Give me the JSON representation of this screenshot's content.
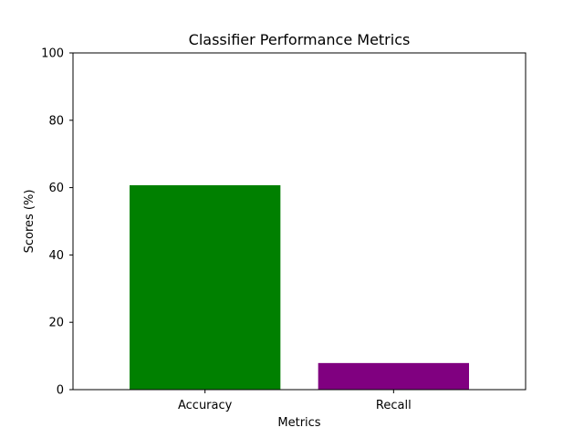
{
  "chart_data": {
    "type": "bar",
    "title": "Classifier Performance Metrics",
    "xlabel": "Metrics",
    "ylabel": "Scores (%)",
    "categories": [
      "Accuracy",
      "Recall"
    ],
    "values": [
      60.7,
      7.9
    ],
    "colors": [
      "#008000",
      "#800080"
    ],
    "ylim": [
      0,
      100
    ],
    "yticks": [
      0,
      20,
      40,
      60,
      80,
      100
    ],
    "grid": false
  }
}
